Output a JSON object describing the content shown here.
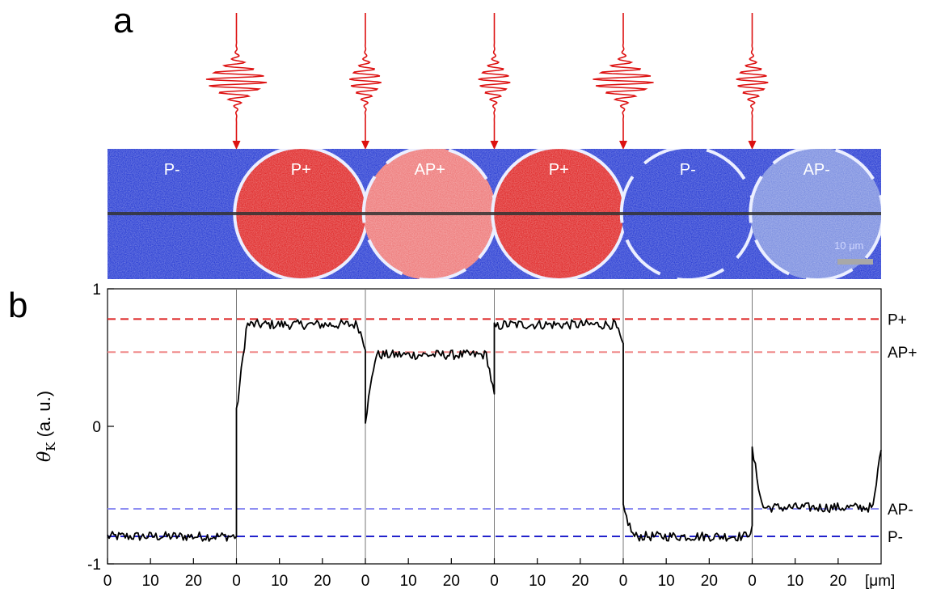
{
  "panels": {
    "a": "a",
    "b": "b"
  },
  "colors": {
    "p_plus": "#dd2222",
    "ap_plus": "#f08a8a",
    "ap_minus": "#8e8ef2",
    "p_minus": "#2222cc",
    "pulse": "#dd1111",
    "trace": "#000000",
    "domain_blue": "#2b3fd4",
    "domain_red": "#e02a2a",
    "domain_pink": "#ee7a7a",
    "domain_lightblue": "#7b8ee0"
  },
  "image_strip": {
    "regions": [
      {
        "label": "P-",
        "type": "p_minus"
      },
      {
        "label": "P+",
        "type": "p_plus"
      },
      {
        "label": "AP+",
        "type": "ap_plus"
      },
      {
        "label": "P+",
        "type": "p_plus"
      },
      {
        "label": "P-",
        "type": "p_minus"
      },
      {
        "label": "AP-",
        "type": "ap_minus"
      }
    ],
    "scale_bar_label": "10 μm"
  },
  "pulses": [
    {
      "amplitude": "large"
    },
    {
      "amplitude": "small"
    },
    {
      "amplitude": "small"
    },
    {
      "amplitude": "large"
    },
    {
      "amplitude": "small"
    }
  ],
  "chart_data": {
    "type": "line",
    "ylabel": "θK (a. u.)",
    "ylabel_main": "θ",
    "ylabel_sub": "K",
    "ylabel_rest": " (a. u.)",
    "ylim": [
      -1,
      1
    ],
    "yticks": [
      -1,
      0,
      1
    ],
    "x_unit_label": "[μm]",
    "segment_xticks": [
      0,
      10,
      20
    ],
    "segment_length_um": 30,
    "segments": [
      {
        "level": -0.8,
        "start": -0.8,
        "end": -0.8
      },
      {
        "level": 0.74,
        "start": 0.1,
        "end": 0.58
      },
      {
        "level": 0.52,
        "start": 0.05,
        "end": 0.22
      },
      {
        "level": 0.74,
        "start": 0.72,
        "end": 0.58
      },
      {
        "level": -0.8,
        "start": -0.6,
        "end": -0.75
      },
      {
        "level": -0.59,
        "start": -0.17,
        "end": -0.14
      }
    ],
    "reference_lines": [
      {
        "label": "P+",
        "value": 0.78,
        "color": "#dd2222"
      },
      {
        "label": "AP+",
        "value": 0.54,
        "color": "#f08a8a"
      },
      {
        "label": "AP-",
        "value": -0.6,
        "color": "#8e8ef2"
      },
      {
        "label": "P-",
        "value": -0.8,
        "color": "#2222cc"
      }
    ]
  }
}
